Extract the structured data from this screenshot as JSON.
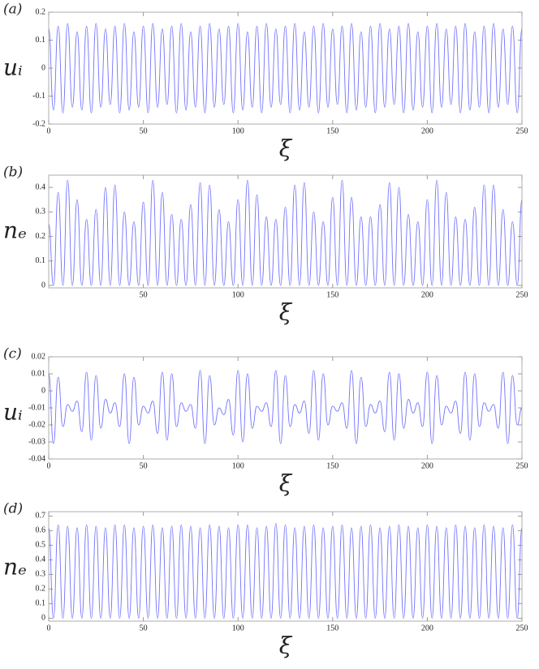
{
  "chart_data": [
    {
      "type": "line",
      "label": "(a)",
      "ylabel": "uᵢ",
      "xlabel": "ξ",
      "color": "#7373ff",
      "xlim": [
        0,
        250
      ],
      "ylim": [
        -0.2,
        0.2
      ],
      "xticks": [
        0,
        50,
        100,
        150,
        200,
        250
      ],
      "yticks": [
        -0.2,
        -0.1,
        0,
        0.1,
        0.2
      ],
      "x": [
        0,
        2.5,
        5,
        7.5,
        10,
        12.5,
        15,
        17.5,
        20,
        22.5,
        25,
        27.5,
        30,
        32.5,
        35,
        37.5,
        40,
        42.5,
        45,
        47.5,
        50,
        52.5,
        55,
        57.5,
        60,
        62.5,
        65,
        67.5,
        70,
        72.5,
        75,
        77.5,
        80,
        82.5,
        85,
        87.5,
        90,
        92.5,
        95,
        97.5,
        100,
        102.5,
        105,
        107.5,
        110,
        112.5,
        115,
        117.5,
        120,
        122.5,
        125,
        127.5,
        130,
        132.5,
        135,
        137.5,
        140,
        142.5,
        145,
        147.5,
        150,
        152.5,
        155,
        157.5,
        160,
        162.5,
        165,
        167.5,
        170,
        172.5,
        175,
        177.5,
        180,
        182.5,
        185,
        187.5,
        190,
        192.5,
        195,
        197.5,
        200,
        202.5,
        205,
        207.5,
        210,
        212.5,
        215,
        217.5,
        220,
        222.5,
        225,
        227.5,
        230,
        232.5,
        235,
        237.5,
        240,
        242.5,
        245,
        247.5,
        250
      ],
      "values": [
        0.14,
        -0.15,
        0.15,
        -0.16,
        0.16,
        -0.14,
        0.13,
        -0.15,
        0.15,
        -0.16,
        0.16,
        -0.14,
        0.14,
        -0.13,
        0.15,
        -0.16,
        0.16,
        -0.15,
        0.13,
        -0.14,
        0.15,
        -0.16,
        0.16,
        -0.14,
        0.14,
        -0.13,
        0.15,
        -0.16,
        0.16,
        -0.15,
        0.13,
        -0.14,
        0.15,
        -0.16,
        0.16,
        -0.14,
        0.14,
        -0.13,
        0.15,
        -0.16,
        0.16,
        -0.15,
        0.13,
        -0.14,
        0.15,
        -0.16,
        0.16,
        -0.14,
        0.14,
        -0.13,
        0.15,
        -0.16,
        0.16,
        -0.15,
        0.13,
        -0.14,
        0.15,
        -0.16,
        0.16,
        -0.14,
        0.14,
        -0.13,
        0.15,
        -0.16,
        0.16,
        -0.15,
        0.13,
        -0.14,
        0.15,
        -0.16,
        0.16,
        -0.14,
        0.14,
        -0.13,
        0.15,
        -0.16,
        0.16,
        -0.15,
        0.13,
        -0.14,
        0.15,
        -0.16,
        0.16,
        -0.14,
        0.14,
        -0.13,
        0.15,
        -0.16,
        0.16,
        -0.15,
        0.13,
        -0.14,
        0.15,
        -0.16,
        0.16,
        -0.14,
        0.14,
        -0.13,
        0.15,
        -0.16,
        0.14
      ]
    },
    {
      "type": "line",
      "label": "(b)",
      "ylabel": "nₑ",
      "xlabel": "ξ",
      "color": "#7373ff",
      "xlim": [
        0,
        250
      ],
      "ylim": [
        -0.01,
        0.45
      ],
      "xticks": [
        50,
        100,
        150,
        200,
        250
      ],
      "yticks": [
        0,
        0.1,
        0.2,
        0.3,
        0.4
      ],
      "x": [
        0,
        2.5,
        5,
        7.5,
        10,
        12.5,
        15,
        17.5,
        20,
        22.5,
        25,
        27.5,
        30,
        32.5,
        35,
        37.5,
        40,
        42.5,
        45,
        47.5,
        50,
        52.5,
        55,
        57.5,
        60,
        62.5,
        65,
        67.5,
        70,
        72.5,
        75,
        77.5,
        80,
        82.5,
        85,
        87.5,
        90,
        92.5,
        95,
        97.5,
        100,
        102.5,
        105,
        107.5,
        110,
        112.5,
        115,
        117.5,
        120,
        122.5,
        125,
        127.5,
        130,
        132.5,
        135,
        137.5,
        140,
        142.5,
        145,
        147.5,
        150,
        152.5,
        155,
        157.5,
        160,
        162.5,
        165,
        167.5,
        170,
        172.5,
        175,
        177.5,
        180,
        182.5,
        185,
        187.5,
        190,
        192.5,
        195,
        197.5,
        200,
        202.5,
        205,
        207.5,
        210,
        212.5,
        215,
        217.5,
        220,
        222.5,
        225,
        227.5,
        230,
        232.5,
        235,
        237.5,
        240,
        242.5,
        245,
        247.5,
        250
      ],
      "values": [
        0.25,
        0,
        0.38,
        0,
        0.43,
        0,
        0.35,
        0,
        0.27,
        0,
        0.31,
        0,
        0.4,
        0,
        0.41,
        0,
        0.3,
        0,
        0.26,
        0,
        0.34,
        0,
        0.43,
        0,
        0.38,
        0,
        0.29,
        0,
        0.27,
        0,
        0.33,
        0,
        0.42,
        0,
        0.41,
        0,
        0.31,
        0,
        0.26,
        0,
        0.35,
        0,
        0.43,
        0,
        0.37,
        0,
        0.28,
        0,
        0.27,
        0,
        0.32,
        0,
        0.41,
        0,
        0.42,
        0,
        0.3,
        0,
        0.26,
        0,
        0.36,
        0,
        0.43,
        0,
        0.36,
        0,
        0.28,
        0,
        0.28,
        0,
        0.33,
        0,
        0.42,
        0,
        0.4,
        0,
        0.29,
        0,
        0.26,
        0,
        0.35,
        0,
        0.43,
        0,
        0.38,
        0,
        0.28,
        0,
        0.27,
        0,
        0.32,
        0,
        0.41,
        0,
        0.41,
        0,
        0.31,
        0,
        0.26,
        0,
        0.35
      ]
    },
    {
      "type": "line",
      "label": "(c)",
      "ylabel": "uᵢ",
      "xlabel": "ξ",
      "color": "#7373ff",
      "xlim": [
        0,
        250
      ],
      "ylim": [
        -0.04,
        0.02
      ],
      "xticks": [
        0,
        50,
        100,
        150,
        200,
        250
      ],
      "yticks": [
        -0.04,
        -0.03,
        -0.02,
        -0.01,
        0,
        0.01,
        0.02
      ],
      "x": [
        0,
        2.5,
        5,
        7.5,
        10,
        12.5,
        15,
        17.5,
        20,
        22.5,
        25,
        27.5,
        30,
        32.5,
        35,
        37.5,
        40,
        42.5,
        45,
        47.5,
        50,
        52.5,
        55,
        57.5,
        60,
        62.5,
        65,
        67.5,
        70,
        72.5,
        75,
        77.5,
        80,
        82.5,
        85,
        87.5,
        90,
        92.5,
        95,
        97.5,
        100,
        102.5,
        105,
        107.5,
        110,
        112.5,
        115,
        117.5,
        120,
        122.5,
        125,
        127.5,
        130,
        132.5,
        135,
        137.5,
        140,
        142.5,
        145,
        147.5,
        150,
        152.5,
        155,
        157.5,
        160,
        162.5,
        165,
        167.5,
        170,
        172.5,
        175,
        177.5,
        180,
        182.5,
        185,
        187.5,
        190,
        192.5,
        195,
        197.5,
        200,
        202.5,
        205,
        207.5,
        210,
        212.5,
        215,
        217.5,
        220,
        222.5,
        225,
        227.5,
        230,
        232.5,
        235,
        237.5,
        240,
        242.5,
        245,
        247.5,
        250
      ],
      "values": [
        0.01,
        -0.031,
        0.008,
        -0.021,
        -0.008,
        -0.012,
        -0.006,
        -0.024,
        0.011,
        -0.029,
        0.009,
        -0.022,
        -0.005,
        -0.013,
        -0.007,
        -0.021,
        0.01,
        -0.031,
        0.008,
        -0.02,
        -0.009,
        -0.013,
        -0.006,
        -0.025,
        0.011,
        -0.029,
        0.01,
        -0.021,
        -0.007,
        -0.012,
        -0.008,
        -0.022,
        0.012,
        -0.031,
        0.009,
        -0.02,
        -0.01,
        -0.014,
        -0.005,
        -0.026,
        0.012,
        -0.03,
        0.01,
        -0.022,
        -0.009,
        -0.012,
        -0.007,
        -0.021,
        0.012,
        -0.031,
        0.009,
        -0.021,
        -0.008,
        -0.013,
        -0.006,
        -0.025,
        0.012,
        -0.029,
        0.01,
        -0.02,
        -0.009,
        -0.012,
        -0.007,
        -0.022,
        0.012,
        -0.031,
        0.008,
        -0.021,
        -0.008,
        -0.013,
        -0.006,
        -0.024,
        0.011,
        -0.029,
        0.01,
        -0.022,
        -0.005,
        -0.013,
        -0.007,
        -0.021,
        0.011,
        -0.031,
        0.009,
        -0.02,
        -0.009,
        -0.013,
        -0.006,
        -0.025,
        0.011,
        -0.029,
        0.01,
        -0.021,
        -0.007,
        -0.012,
        -0.008,
        -0.022,
        0.011,
        -0.031,
        0.009,
        -0.02,
        -0.01
      ]
    },
    {
      "type": "line",
      "label": "(d)",
      "ylabel": "nₑ",
      "xlabel": "ξ",
      "color": "#7373ff",
      "xlim": [
        0,
        250
      ],
      "ylim": [
        -0.02,
        0.73
      ],
      "xticks": [
        0,
        50,
        100,
        150,
        200,
        250
      ],
      "yticks": [
        0,
        0.1,
        0.2,
        0.3,
        0.4,
        0.5,
        0.6,
        0.7
      ],
      "x": [
        0,
        2.5,
        5,
        7.5,
        10,
        12.5,
        15,
        17.5,
        20,
        22.5,
        25,
        27.5,
        30,
        32.5,
        35,
        37.5,
        40,
        42.5,
        45,
        47.5,
        50,
        52.5,
        55,
        57.5,
        60,
        62.5,
        65,
        67.5,
        70,
        72.5,
        75,
        77.5,
        80,
        82.5,
        85,
        87.5,
        90,
        92.5,
        95,
        97.5,
        100,
        102.5,
        105,
        107.5,
        110,
        112.5,
        115,
        117.5,
        120,
        122.5,
        125,
        127.5,
        130,
        132.5,
        135,
        137.5,
        140,
        142.5,
        145,
        147.5,
        150,
        152.5,
        155,
        157.5,
        160,
        162.5,
        165,
        167.5,
        170,
        172.5,
        175,
        177.5,
        180,
        182.5,
        185,
        187.5,
        190,
        192.5,
        195,
        197.5,
        200,
        202.5,
        205,
        207.5,
        210,
        212.5,
        215,
        217.5,
        220,
        222.5,
        225,
        227.5,
        230,
        232.5,
        235,
        237.5,
        240,
        242.5,
        245,
        247.5,
        250
      ],
      "values": [
        0.62,
        0,
        0.64,
        0,
        0.63,
        0,
        0.62,
        0,
        0.64,
        0,
        0.63,
        0,
        0.62,
        0,
        0.64,
        0,
        0.64,
        0,
        0.62,
        0,
        0.63,
        0,
        0.64,
        0,
        0.62,
        0,
        0.63,
        0,
        0.64,
        0,
        0.63,
        0,
        0.62,
        0,
        0.64,
        0,
        0.63,
        0,
        0.62,
        0,
        0.64,
        0,
        0.64,
        0,
        0.62,
        0,
        0.63,
        0,
        0.65,
        0,
        0.64,
        0,
        0.62,
        0,
        0.63,
        0,
        0.64,
        0,
        0.62,
        0,
        0.63,
        0,
        0.64,
        0,
        0.62,
        0,
        0.63,
        0,
        0.64,
        0,
        0.62,
        0,
        0.63,
        0,
        0.64,
        0,
        0.63,
        0,
        0.62,
        0,
        0.64,
        0,
        0.63,
        0,
        0.62,
        0,
        0.64,
        0,
        0.63,
        0,
        0.62,
        0,
        0.64,
        0,
        0.63,
        0,
        0.62,
        0,
        0.64,
        0,
        0.62
      ]
    }
  ]
}
